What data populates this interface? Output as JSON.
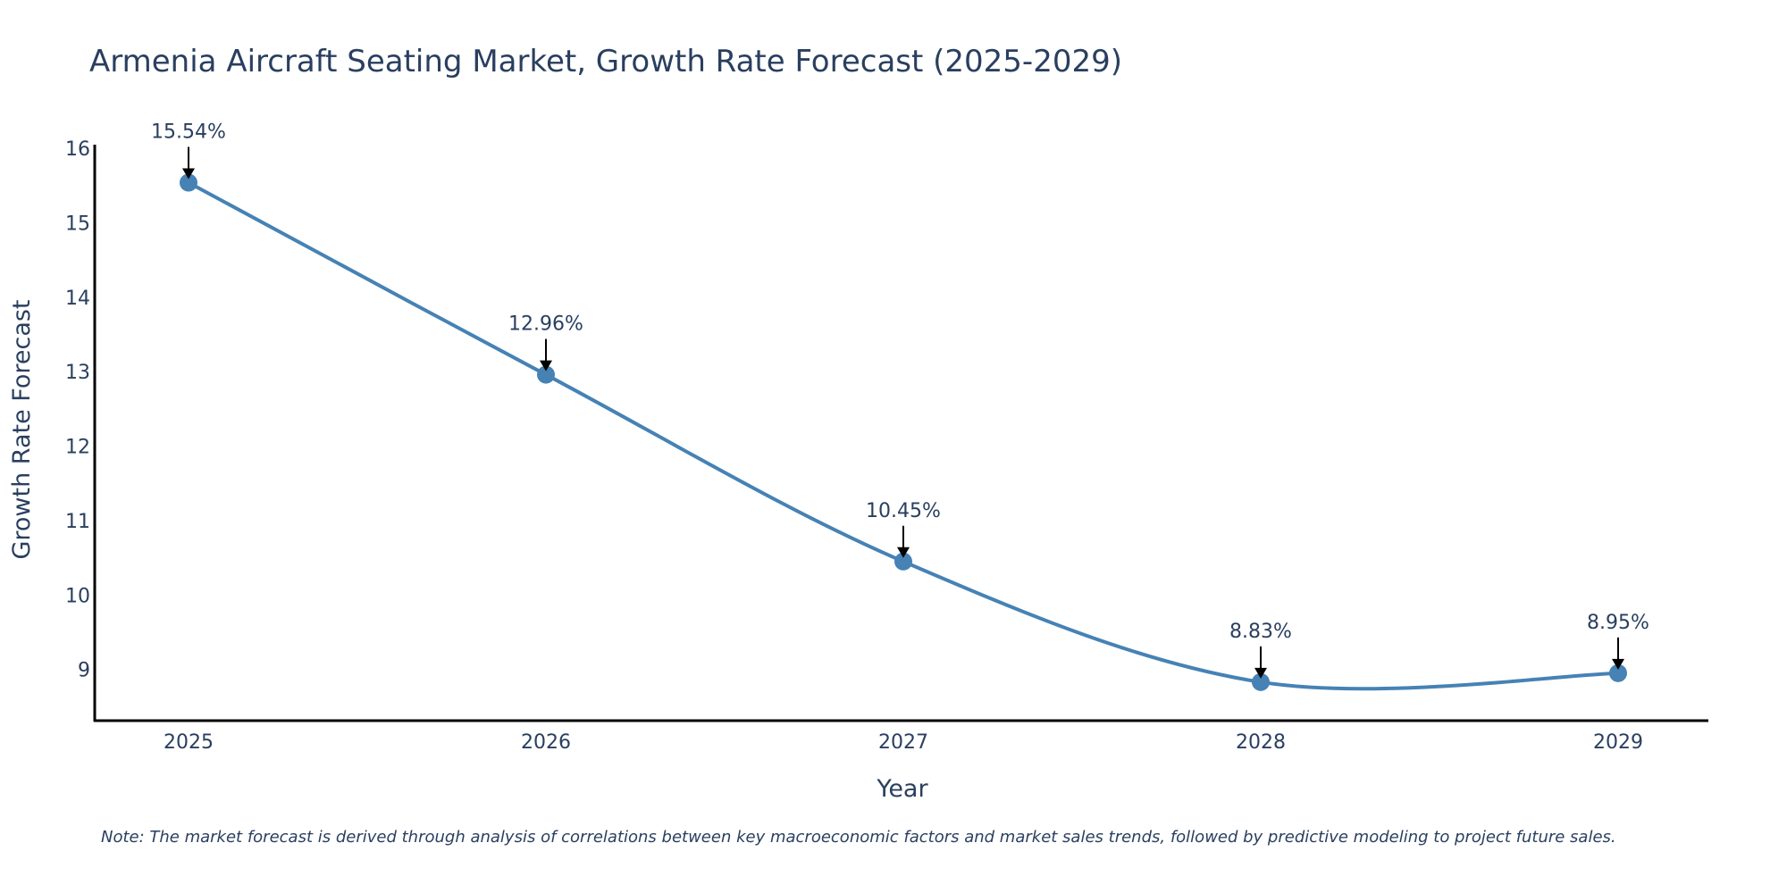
{
  "chart_data": {
    "type": "line",
    "title": "Armenia Aircraft Seating Market, Growth Rate Forecast (2025-2029)",
    "xlabel": "Year",
    "ylabel": "Growth Rate Forecast",
    "categories": [
      "2025",
      "2026",
      "2027",
      "2028",
      "2029"
    ],
    "values": [
      15.54,
      12.96,
      10.45,
      8.83,
      8.95
    ],
    "data_labels": [
      "15.54%",
      "12.96%",
      "10.45%",
      "8.83%",
      "8.95%"
    ],
    "yticks": [
      9,
      10,
      11,
      12,
      13,
      14,
      15,
      16
    ],
    "ylim": [
      8.3,
      16.05
    ],
    "line_shape": "spline",
    "grid": false,
    "line_color": "#4682b4",
    "marker_color": "#4682b4"
  },
  "note": "Note: The market forecast is derived through analysis of correlations between key macroeconomic factors and market sales trends, followed by predictive modeling to project future sales."
}
